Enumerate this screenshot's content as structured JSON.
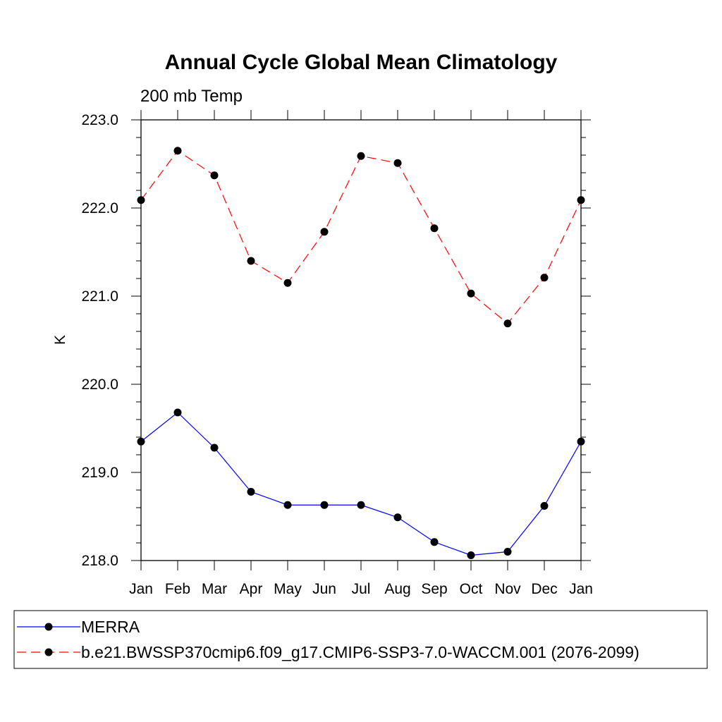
{
  "chart_data": {
    "type": "line",
    "title": "Annual Cycle Global Mean Climatology",
    "subtitle": "200 mb Temp",
    "xlabel": "",
    "ylabel": "K",
    "categories": [
      "Jan",
      "Feb",
      "Mar",
      "Apr",
      "May",
      "Jun",
      "Jul",
      "Aug",
      "Sep",
      "Oct",
      "Nov",
      "Dec",
      "Jan"
    ],
    "ylim": [
      218.0,
      223.0
    ],
    "yticks": [
      "218.0",
      "219.0",
      "220.0",
      "221.0",
      "222.0",
      "223.0"
    ],
    "grid": false,
    "legend_position": "bottom",
    "series": [
      {
        "name": "MERRA",
        "color": "#0000ff",
        "dash": "solid",
        "values": [
          219.35,
          219.68,
          219.28,
          218.78,
          218.63,
          218.63,
          218.63,
          218.49,
          218.21,
          218.06,
          218.1,
          218.62,
          219.35
        ]
      },
      {
        "name": "b.e21.BWSSP370cmip6.f09_g17.CMIP6-SSP3-7.0-WACCM.001 (2076-2099)",
        "color": "#ff0000",
        "dash": "dashed",
        "values": [
          222.09,
          222.65,
          222.37,
          221.4,
          221.15,
          221.73,
          222.59,
          222.51,
          221.77,
          221.03,
          220.69,
          221.21,
          222.09
        ]
      }
    ]
  }
}
